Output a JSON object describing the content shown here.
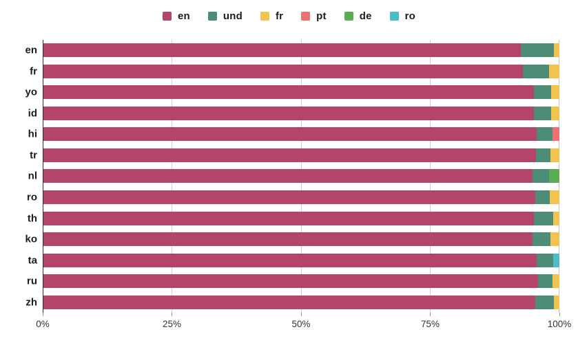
{
  "chart_data": {
    "type": "bar",
    "orientation": "horizontal",
    "stacked": true,
    "title": "",
    "xlabel": "",
    "ylabel": "",
    "unit": "%",
    "xlim": [
      0,
      100
    ],
    "grid": true,
    "legend_position": "top",
    "x_ticks": [
      {
        "value": 0,
        "label": "0%"
      },
      {
        "value": 25,
        "label": "25%"
      },
      {
        "value": 50,
        "label": "50%"
      },
      {
        "value": 75,
        "label": "75%"
      },
      {
        "value": 100,
        "label": "100%"
      }
    ],
    "series": [
      {
        "name": "en",
        "color": "#b34569"
      },
      {
        "name": "und",
        "color": "#4d8c76"
      },
      {
        "name": "fr",
        "color": "#f2c34e"
      },
      {
        "name": "pt",
        "color": "#ee7070"
      },
      {
        "name": "de",
        "color": "#5bad53"
      },
      {
        "name": "ro",
        "color": "#4abcca"
      }
    ],
    "categories": [
      "en",
      "fr",
      "yo",
      "id",
      "hi",
      "tr",
      "nl",
      "ro",
      "th",
      "ko",
      "ta",
      "ru",
      "zh"
    ],
    "rows": [
      {
        "category": "en",
        "segments": [
          {
            "series": "en",
            "value": 92.5
          },
          {
            "series": "und",
            "value": 6.4
          },
          {
            "series": "fr",
            "value": 1.1
          }
        ]
      },
      {
        "category": "fr",
        "segments": [
          {
            "series": "en",
            "value": 92.9
          },
          {
            "series": "und",
            "value": 5.1
          },
          {
            "series": "fr",
            "value": 2.0
          }
        ]
      },
      {
        "category": "yo",
        "segments": [
          {
            "series": "en",
            "value": 95.0
          },
          {
            "series": "und",
            "value": 3.4
          },
          {
            "series": "fr",
            "value": 1.6
          }
        ]
      },
      {
        "category": "id",
        "segments": [
          {
            "series": "en",
            "value": 95.1
          },
          {
            "series": "und",
            "value": 3.3
          },
          {
            "series": "fr",
            "value": 1.6
          }
        ]
      },
      {
        "category": "hi",
        "segments": [
          {
            "series": "en",
            "value": 95.6
          },
          {
            "series": "und",
            "value": 3.1
          },
          {
            "series": "pt",
            "value": 1.3
          }
        ]
      },
      {
        "category": "tr",
        "segments": [
          {
            "series": "en",
            "value": 95.5
          },
          {
            "series": "und",
            "value": 2.8
          },
          {
            "series": "fr",
            "value": 1.7
          }
        ]
      },
      {
        "category": "nl",
        "segments": [
          {
            "series": "en",
            "value": 94.8
          },
          {
            "series": "und",
            "value": 3.2
          },
          {
            "series": "de",
            "value": 2.0
          }
        ]
      },
      {
        "category": "ro",
        "segments": [
          {
            "series": "en",
            "value": 95.3
          },
          {
            "series": "und",
            "value": 2.8
          },
          {
            "series": "fr",
            "value": 1.9
          }
        ]
      },
      {
        "category": "th",
        "segments": [
          {
            "series": "en",
            "value": 95.1
          },
          {
            "series": "und",
            "value": 3.7
          },
          {
            "series": "fr",
            "value": 1.2
          }
        ]
      },
      {
        "category": "ko",
        "segments": [
          {
            "series": "en",
            "value": 94.8
          },
          {
            "series": "und",
            "value": 3.5
          },
          {
            "series": "fr",
            "value": 1.7
          }
        ]
      },
      {
        "category": "ta",
        "segments": [
          {
            "series": "en",
            "value": 95.6
          },
          {
            "series": "und",
            "value": 3.2
          },
          {
            "series": "ro",
            "value": 1.2
          }
        ]
      },
      {
        "category": "ru",
        "segments": [
          {
            "series": "en",
            "value": 95.9
          },
          {
            "series": "und",
            "value": 2.7
          },
          {
            "series": "fr",
            "value": 1.4
          }
        ]
      },
      {
        "category": "zh",
        "segments": [
          {
            "series": "en",
            "value": 95.3
          },
          {
            "series": "und",
            "value": 3.6
          },
          {
            "series": "fr",
            "value": 1.1
          }
        ]
      }
    ]
  },
  "style_colors": {
    "axis_line": "#2b2b2b",
    "gridline": "#cfcfcf",
    "end_gridline": "#c4c4c4",
    "label_text": "#1c1c1c",
    "tick_text": "#333333",
    "background": "#ffffff"
  }
}
